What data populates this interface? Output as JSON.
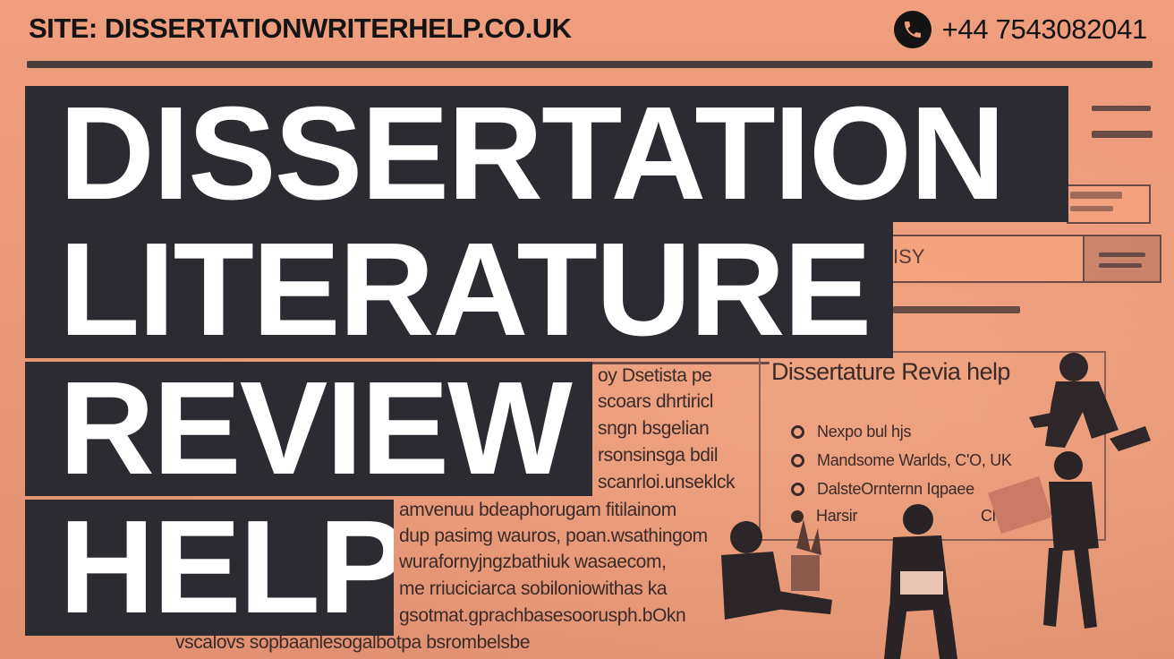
{
  "header": {
    "site": "SITE: DISSERTATIONWRITERHELP.CO.UK",
    "phone": "+44 7543082041"
  },
  "headline": {
    "line1": "DISSERTATION",
    "line2": "LITERATURE",
    "line3": "REVIEW",
    "line4": "HELP"
  },
  "mock_document": {
    "title": "Dissertature Revia help",
    "box_label": "ISY",
    "items": [
      {
        "text": "Nexpo bul hjs",
        "icon": "radio-icon"
      },
      {
        "text": "Mandsome Warlds, C'O, UK",
        "icon": "radio-icon"
      },
      {
        "text": "DalsteOrnternn Iqpaee",
        "icon": "radio-icon"
      },
      {
        "text": "Harsir",
        "icon": "pie-icon"
      }
    ],
    "trailing_label": "Ch",
    "body_lines": [
      "oy Dsetista pe",
      "scoars dhrtiricl",
      "sngn bsgelian",
      "rsonsinsga bdil",
      "scanrloi.unseklck",
      "amvenuu bdeaphorugam fitilainom",
      "dup pasimg wauros, poan.wsathingom",
      "wurafornyjngzbathiuk wasaecom,",
      "me rriuciciarca sobiloniowithas ka",
      "gsotmat.gprachbasesoorusph.bOkn",
      "vscalovs sopbaanlesogalbotpa bsrombelsbe"
    ]
  },
  "colors": {
    "background": "#ef9a78",
    "headline_bg": "#2b2b31",
    "headline_text": "#ffffff",
    "ink": "#141414"
  }
}
